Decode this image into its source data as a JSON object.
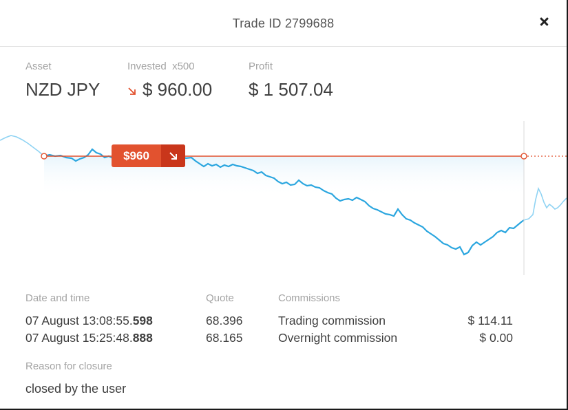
{
  "dialog": {
    "title": "Trade ID 2799688",
    "close_label": "close"
  },
  "summary": {
    "asset_label": "Asset",
    "asset_value": "NZD JPY",
    "invested_label": "Invested",
    "leverage": "x500",
    "invested_value": "$ 960.00",
    "direction": "sell",
    "profit_label": "Profit",
    "profit_value": "$ 1 507.04"
  },
  "chart_data": {
    "type": "line",
    "badge_label": "$960",
    "open_level": 68.396,
    "series_color": "#2ba6df",
    "level_color": "#e2522f"
  },
  "details": {
    "datetime_label": "Date and time",
    "quote_label": "Quote",
    "commissions_label": "Commissions",
    "rows": [
      {
        "date": "07 August 13:08:55.",
        "ms": "598",
        "quote": "68.396",
        "commission_name": "Trading commission",
        "commission_value": "$ 114.11"
      },
      {
        "date": "07 August 15:25:48.",
        "ms": "888",
        "quote": "68.165",
        "commission_name": "Overnight commission",
        "commission_value": "$ 0.00"
      }
    ]
  },
  "reason": {
    "label": "Reason for closure",
    "value": "closed by the user"
  },
  "colors": {
    "accent_red": "#e2522f",
    "accent_red_dark": "#c9361b",
    "line_blue": "#2ba6df"
  }
}
